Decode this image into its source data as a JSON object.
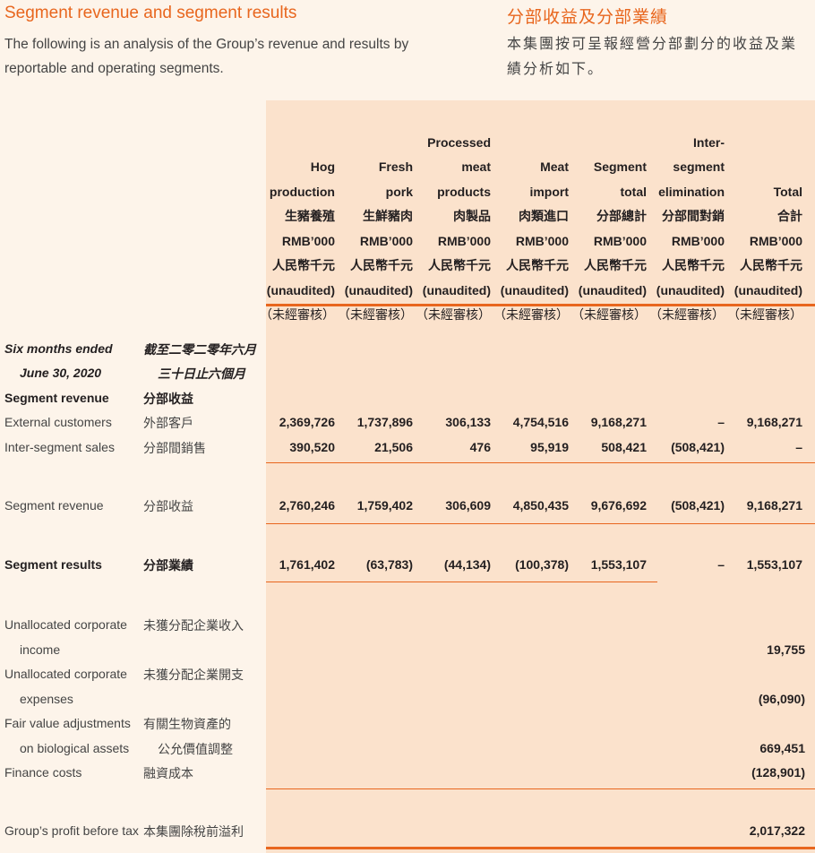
{
  "title": {
    "en": "Segment revenue and segment results",
    "zh": "分部收益及分部業績"
  },
  "intro": {
    "en": "The following is an analysis of the Group’s revenue and results by reportable and operating segments.",
    "zh": "本集團按可呈報經營分部劃分的收益及業績分析如下。"
  },
  "columns": [
    {
      "l1": "",
      "l2": "",
      "l3": "Hog",
      "l4": "production",
      "zh": "生豬養殖"
    },
    {
      "l1": "",
      "l2": "",
      "l3": "Fresh",
      "l4": "pork",
      "zh": "生鮮豬肉"
    },
    {
      "l1": "",
      "l2": "Processed",
      "l3": "meat",
      "l4": "products",
      "zh": "肉製品"
    },
    {
      "l1": "",
      "l2": "",
      "l3": "Meat",
      "l4": "import",
      "zh": "肉類進口"
    },
    {
      "l1": "",
      "l2": "",
      "l3": "Segment",
      "l4": "total",
      "zh": "分部總計"
    },
    {
      "l1": "",
      "l2": "Inter-",
      "l3": "segment",
      "l4": "elimination",
      "zh": "分部間對銷"
    },
    {
      "l1": "",
      "l2": "",
      "l3": "",
      "l4": "Total",
      "zh": "合計"
    }
  ],
  "units": {
    "en": "RMB’000",
    "zh": "人民幣千元",
    "audit_en": "(unaudited)",
    "audit_zh": "（未經審核）"
  },
  "period": {
    "en1": "Six months ended",
    "en2": "June 30, 2020",
    "zh1": "截至二零二零年六月",
    "zh2": "三十日止六個月"
  },
  "rows": {
    "segrev_head": {
      "en": "Segment revenue",
      "zh": "分部收益"
    },
    "external": {
      "en": "External customers",
      "zh": "外部客戶",
      "values": [
        "2,369,726",
        "1,737,896",
        "306,133",
        "4,754,516",
        "9,168,271",
        "–",
        "9,168,271"
      ]
    },
    "inter": {
      "en": "Inter-segment sales",
      "zh": "分部間銷售",
      "values": [
        "390,520",
        "21,506",
        "476",
        "95,919",
        "508,421",
        "(508,421)",
        "–"
      ]
    },
    "segrev": {
      "en": "Segment revenue",
      "zh": "分部收益",
      "values": [
        "2,760,246",
        "1,759,402",
        "306,609",
        "4,850,435",
        "9,676,692",
        "(508,421)",
        "9,168,271"
      ]
    },
    "segres": {
      "en": "Segment results",
      "zh": "分部業績",
      "values": [
        "1,761,402",
        "(63,783)",
        "(44,134)",
        "(100,378)",
        "1,553,107",
        "–",
        "1,553,107"
      ]
    },
    "unalloc_inc": {
      "en1": "Unallocated corporate",
      "en2": "income",
      "zh": "未獲分配企業收入",
      "value": "19,755"
    },
    "unalloc_exp": {
      "en1": "Unallocated corporate",
      "en2": "expenses",
      "zh": "未獲分配企業開支",
      "value": "(96,090)"
    },
    "fairvalue": {
      "en1": "Fair value adjustments",
      "en2": "on biological assets",
      "zh1": "有關生物資產的",
      "zh2": "公允價值調整",
      "value": "669,451"
    },
    "finance": {
      "en": "Finance costs",
      "zh": "融資成本",
      "value": "(128,901)"
    },
    "profit": {
      "en": "Group’s profit before tax",
      "zh": "本集團除稅前溢利",
      "value": "2,017,322"
    }
  }
}
